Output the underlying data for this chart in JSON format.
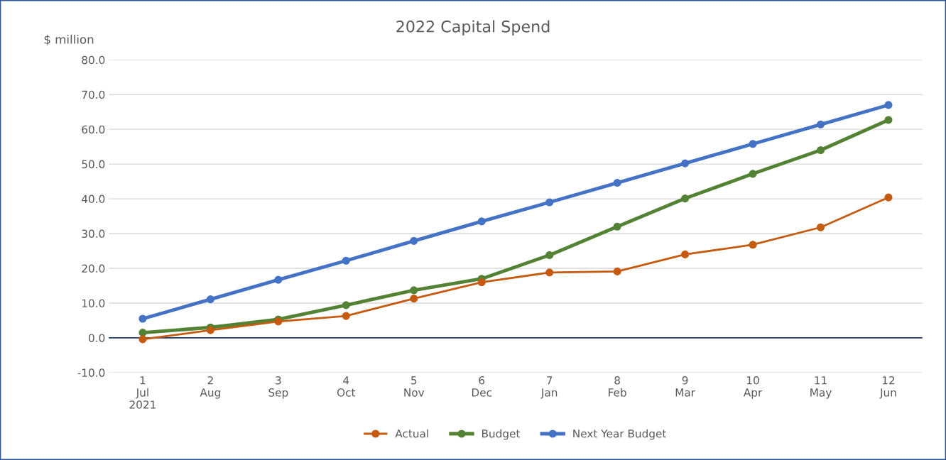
{
  "chart_data": {
    "type": "line",
    "title": "2022 Capital Spend",
    "ylabel": "$ million",
    "categories": [
      "1\nJul\n2021",
      "2\nAug",
      "3\nSep",
      "4\nOct",
      "5\nNov",
      "6\nDec",
      "7\nJan",
      "8\nFeb",
      "9\nMar",
      "10\nApr",
      "11\nMay",
      "12\nJun"
    ],
    "series": [
      {
        "name": "Actual",
        "color": "#c55a11",
        "values": [
          -0.4,
          2.2,
          4.7,
          6.3,
          11.3,
          16.0,
          18.8,
          19.1,
          24.0,
          26.8,
          31.8,
          40.4
        ]
      },
      {
        "name": "Budget",
        "color": "#548235",
        "values": [
          1.5,
          3.0,
          5.3,
          9.4,
          13.7,
          17.0,
          23.8,
          32.0,
          40.1,
          47.2,
          54.0,
          62.7
        ]
      },
      {
        "name": "Next Year Budget",
        "color": "#4472c4",
        "values": [
          5.5,
          11.1,
          16.7,
          22.2,
          27.9,
          33.5,
          39.0,
          44.6,
          50.2,
          55.8,
          61.4,
          67.0
        ]
      }
    ],
    "ylim": [
      -10,
      80
    ],
    "yticks": [
      {
        "value": -10,
        "label": "-10.0"
      },
      {
        "value": 0,
        "label": "0.0"
      },
      {
        "value": 10,
        "label": "10.0"
      },
      {
        "value": 20,
        "label": "20.0"
      },
      {
        "value": 30,
        "label": "30.0"
      },
      {
        "value": 40,
        "label": "40.0"
      },
      {
        "value": 50,
        "label": "50.0"
      },
      {
        "value": 60,
        "label": "60.0"
      },
      {
        "value": 70,
        "label": "70.0"
      },
      {
        "value": 80,
        "label": "80.0"
      }
    ],
    "ref_lines": [
      {
        "axis": "y",
        "value": 0,
        "color": "#1f3864"
      }
    ],
    "grid": "y",
    "legend": "bottom",
    "marker": "circle",
    "line_style": "solid"
  }
}
